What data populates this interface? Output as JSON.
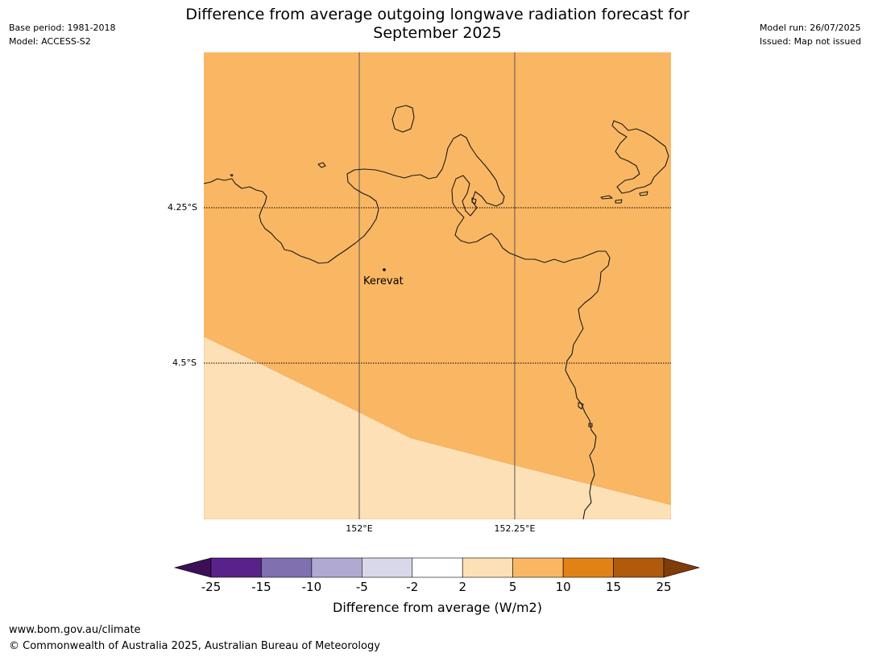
{
  "header": {
    "title_line1": "Difference from average outgoing longwave radiation forecast for",
    "title_line2": "September 2025",
    "base_period": "Base period: 1981-2018",
    "model": "Model: ACCESS-S2",
    "model_run": "Model run: 26/07/2025",
    "issued": "Issued: Map not issued"
  },
  "map": {
    "lat_labels": [
      "4.25°S",
      "4.5°S"
    ],
    "lon_labels": [
      "152°E",
      "152.25°E"
    ],
    "place": {
      "name": "Kerevat",
      "marker": "dot-icon"
    },
    "region_classes": [
      {
        "range": "5 to 10",
        "color": "#fab763"
      },
      {
        "range": "2 to 5",
        "color": "#fde0b6"
      }
    ]
  },
  "colorbar": {
    "label": "Difference from average (W/m2)",
    "ticks": [
      "-25",
      "-15",
      "-10",
      "-5",
      "-2",
      "2",
      "5",
      "10",
      "15",
      "25"
    ],
    "colors": [
      "#3c0f57",
      "#59228a",
      "#8070b0",
      "#b0a9d2",
      "#d8d8ea",
      "#ffffff",
      "#fde0b6",
      "#fab763",
      "#e18217",
      "#b05a0b",
      "#7f3b08"
    ],
    "extend": "both"
  },
  "footer": {
    "url": "www.bom.gov.au/climate",
    "copyright": "© Commonwealth of Australia 2025, Australian Bureau of Meteorology"
  }
}
